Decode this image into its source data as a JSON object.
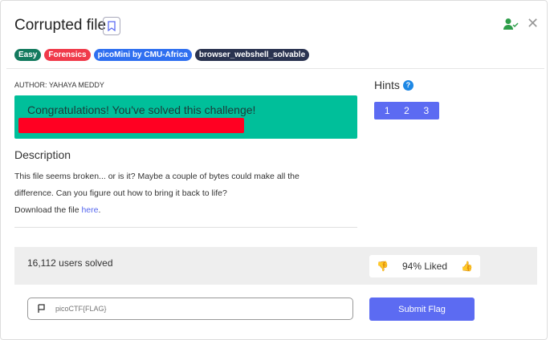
{
  "challenge": {
    "title": "Corrupted file",
    "author": "AUTHOR: YAHAYA MEDDY",
    "tags": [
      {
        "label": "Easy",
        "color": "#137a5e"
      },
      {
        "label": "Forensics",
        "color": "#f03a4a"
      },
      {
        "label": "picoMini by CMU-Africa",
        "color": "#2f6ff0"
      },
      {
        "label": "browser_webshell_solvable",
        "color": "#2a3350"
      }
    ],
    "solved_message": "Congratulations! You've solved this challenge!",
    "description_heading": "Description",
    "description_line1": "This file seems broken... or is it? Maybe a couple of bytes could make all the difference. Can you figure out how to bring it back to life?",
    "download_prefix": "Download the file ",
    "download_link": "here",
    "download_suffix": "."
  },
  "hints": {
    "heading": "Hints",
    "help_icon": "?",
    "buttons": [
      "1",
      "2",
      "3"
    ]
  },
  "stats": {
    "users_solved": "16,112 users solved",
    "liked": "94% Liked"
  },
  "flag_form": {
    "placeholder": "picoCTF{FLAG}",
    "submit_label": "Submit Flag"
  },
  "icons": {
    "close": "close-icon",
    "solved_user": "user-check-icon",
    "bookmark": "bookmark-icon"
  }
}
